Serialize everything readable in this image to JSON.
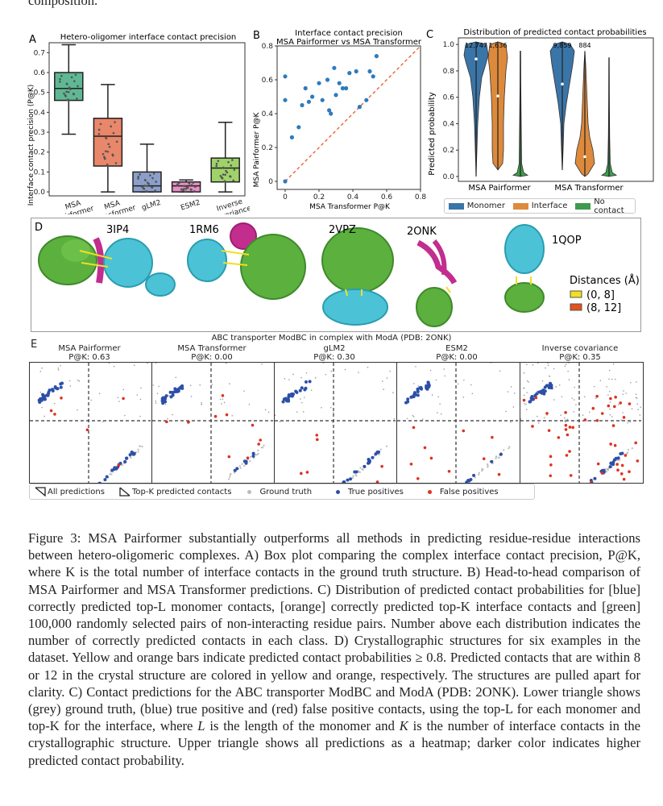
{
  "top_text": "composition.",
  "panelA": {
    "label": "A",
    "title": "Hetero-oligomer interface contact precision",
    "ylabel": "Interface contact precision (P@K)",
    "yticks": [
      "0.0",
      "0.1",
      "0.2",
      "0.3",
      "0.4",
      "0.5",
      "0.6",
      "0.7"
    ],
    "xticks": [
      [
        "MSA",
        "Pairformer"
      ],
      [
        "MSA",
        "Transformer"
      ],
      [
        "gLM2",
        ""
      ],
      [
        "ESM2",
        ""
      ],
      [
        "Inverse",
        "covariance"
      ]
    ]
  },
  "panelB": {
    "label": "B",
    "title1": "Interface contact precision",
    "title2": "MSA Pairformer vs MSA Transformer",
    "xlabel": "MSA Transformer P@K",
    "ylabel": "MSA Pairformer P@K",
    "ticks": [
      "0",
      "0.2",
      "0.4",
      "0.6",
      "0.8"
    ],
    "yticks": [
      "0",
      "0.2",
      "0.4",
      "0.6",
      "0.8"
    ]
  },
  "panelC": {
    "label": "C",
    "title": "Distribution of predicted contact probabilities",
    "ylabel": "Predicted probability",
    "yticks": [
      "0.0",
      "0.2",
      "0.4",
      "0.6",
      "0.8",
      "1.0"
    ],
    "groups": [
      "MSA Pairformer",
      "MSA Transformer"
    ],
    "counts": [
      "12,747",
      "1,636",
      "9,859",
      "884"
    ],
    "legend": [
      {
        "label": "Monomer",
        "color": "#3a75a8"
      },
      {
        "label": "Interface",
        "color": "#dd8a3c"
      },
      {
        "label": "No contact",
        "color": "#3f9a4d"
      }
    ]
  },
  "panelD": {
    "label": "D",
    "structures": [
      "3IP4",
      "1RM6",
      "2VPZ",
      "2ONK",
      "1QOP"
    ],
    "legend_title": "Distances (Å)",
    "legend": [
      {
        "label": "(0, 8]",
        "color": "#f0e020"
      },
      {
        "label": "(8, 12]",
        "color": "#e8501c"
      }
    ]
  },
  "panelE": {
    "label": "E",
    "title": "ABC transporter ModBC in complex with ModA (PDB: 2ONK)",
    "maps": [
      {
        "name": "MSA Pairformer",
        "score": "P@K: 0.63"
      },
      {
        "name": "MSA Transformer",
        "score": "P@K: 0.00"
      },
      {
        "name": "gLM2",
        "score": "P@K: 0.30"
      },
      {
        "name": "ESM2",
        "score": "P@K: 0.00"
      },
      {
        "name": "Inverse covariance",
        "score": "P@K: 0.35"
      }
    ],
    "legend": [
      "All predictions",
      "Top-K predicted contacts",
      "Ground truth",
      "True positives",
      "False positives"
    ]
  },
  "chart_data": [
    {
      "type": "box",
      "title": "Hetero-oligomer interface contact precision",
      "ylabel": "Interface contact precision (P@K)",
      "categories": [
        "MSA Pairformer",
        "MSA Transformer",
        "gLM2",
        "ESM2",
        "Inverse covariance"
      ],
      "boxes": [
        {
          "min": 0.29,
          "q1": 0.46,
          "median": 0.52,
          "q3": 0.6,
          "max": 0.74,
          "color": "#5fb894"
        },
        {
          "min": 0.0,
          "q1": 0.13,
          "median": 0.28,
          "q3": 0.37,
          "max": 0.54,
          "color": "#e9876a"
        },
        {
          "min": 0.0,
          "q1": 0.0,
          "median": 0.03,
          "q3": 0.1,
          "max": 0.24,
          "color": "#8c9fcb"
        },
        {
          "min": 0.0,
          "q1": 0.0,
          "median": 0.03,
          "q3": 0.05,
          "max": 0.06,
          "color": "#e58fc3"
        },
        {
          "min": 0.0,
          "q1": 0.05,
          "median": 0.12,
          "q3": 0.17,
          "max": 0.35,
          "color": "#9fd36a"
        }
      ],
      "ylim": [
        0,
        0.75
      ]
    },
    {
      "type": "scatter",
      "title": "Interface contact precision MSA Pairformer vs MSA Transformer",
      "xlabel": "MSA Transformer P@K",
      "ylabel": "MSA Pairformer P@K",
      "xlim": [
        0,
        0.8
      ],
      "ylim": [
        0,
        0.8
      ],
      "points": [
        [
          0,
          0
        ],
        [
          0,
          0.48
        ],
        [
          0,
          0.62
        ],
        [
          0.04,
          0.26
        ],
        [
          0.08,
          0.32
        ],
        [
          0.1,
          0.45
        ],
        [
          0.12,
          0.55
        ],
        [
          0.14,
          0.47
        ],
        [
          0.16,
          0.5
        ],
        [
          0.2,
          0.58
        ],
        [
          0.22,
          0.48
        ],
        [
          0.25,
          0.6
        ],
        [
          0.26,
          0.42
        ],
        [
          0.27,
          0.4
        ],
        [
          0.29,
          0.67
        ],
        [
          0.3,
          0.51
        ],
        [
          0.32,
          0.58
        ],
        [
          0.34,
          0.55
        ],
        [
          0.36,
          0.55
        ],
        [
          0.38,
          0.64
        ],
        [
          0.42,
          0.65
        ],
        [
          0.44,
          0.44
        ],
        [
          0.48,
          0.48
        ],
        [
          0.5,
          0.65
        ],
        [
          0.52,
          0.62
        ],
        [
          0.54,
          0.74
        ]
      ]
    },
    {
      "type": "violin",
      "title": "Distribution of predicted contact probabilities",
      "ylabel": "Predicted probability",
      "groups": [
        "MSA Pairformer",
        "MSA Transformer"
      ],
      "series": [
        {
          "name": "Monomer"
        },
        {
          "name": "Interface"
        },
        {
          "name": "No contact"
        }
      ],
      "ylim": [
        0,
        1.05
      ]
    }
  ]
}
